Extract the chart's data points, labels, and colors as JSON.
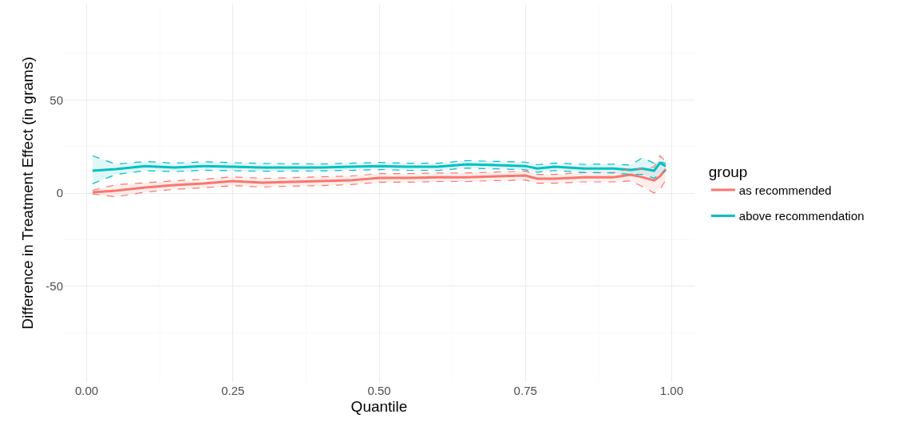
{
  "chart_data": {
    "type": "line",
    "xlabel": "Quantile",
    "ylabel": "Difference in Treatment Effect (in grams)",
    "legend_title": "group",
    "x": [
      0.01,
      0.05,
      0.1,
      0.15,
      0.2,
      0.25,
      0.3,
      0.35,
      0.4,
      0.45,
      0.5,
      0.55,
      0.6,
      0.65,
      0.7,
      0.75,
      0.77,
      0.8,
      0.85,
      0.9,
      0.93,
      0.95,
      0.97,
      0.98,
      0.99
    ],
    "series": [
      {
        "name": "as recommended",
        "color": "#f8766d",
        "values": [
          0.4,
          1.3,
          3,
          4.3,
          5.1,
          6.4,
          5.6,
          6,
          6.4,
          6.8,
          8.1,
          8.1,
          8.5,
          8.5,
          9,
          9.4,
          7.7,
          7.7,
          8.5,
          8.5,
          9.8,
          8.5,
          6.8,
          9,
          12.8
        ],
        "lower": [
          -0.5,
          -2,
          0.5,
          2,
          2.8,
          4,
          3.3,
          3.7,
          4,
          4.5,
          5.8,
          5.8,
          6.2,
          6.2,
          6.7,
          7,
          5.3,
          5.3,
          6,
          6,
          6.5,
          3.5,
          0,
          2,
          7
        ],
        "upper": [
          1.5,
          4.5,
          5.5,
          6.6,
          7.4,
          8.7,
          7.9,
          8.3,
          8.7,
          9.1,
          10.4,
          10.4,
          10.8,
          10.8,
          11.3,
          11.7,
          10,
          10,
          11,
          11,
          13,
          13,
          14,
          20,
          17
        ]
      },
      {
        "name": "above recommendation",
        "color": "#00bfc4",
        "values": [
          12,
          12.8,
          14.5,
          13.7,
          14.5,
          14.1,
          13.7,
          13.7,
          13.7,
          14.1,
          14.5,
          14.1,
          14.1,
          15.4,
          15,
          14.5,
          13.2,
          14.1,
          13.2,
          13.2,
          12.4,
          13.2,
          12,
          16.2,
          14.5
        ],
        "lower": [
          5,
          10,
          12,
          11.5,
          12.3,
          12,
          11.7,
          11.8,
          11.9,
          12.2,
          12.6,
          12.2,
          12.2,
          13.4,
          13,
          12.5,
          11.2,
          12.1,
          11,
          10.8,
          10,
          10,
          8,
          10,
          12
        ],
        "upper": [
          20,
          15.5,
          17,
          16,
          16.8,
          16.3,
          15.9,
          15.7,
          15.6,
          16,
          16.4,
          16,
          16,
          17.4,
          17,
          16.6,
          15.2,
          16.1,
          15.4,
          15.5,
          15,
          19,
          16,
          17,
          16
        ]
      },
      {
        "color": "#f8766d",
        "line_style": "dashed",
        "values": [
          -0.5,
          -2,
          0.5,
          2,
          2.8,
          4,
          3.3,
          3.7,
          4,
          4.5,
          5.8,
          5.8,
          6.2,
          6.2,
          6.7,
          7,
          5.3,
          5.3,
          6,
          6,
          6.5,
          3.5,
          0,
          2,
          7
        ]
      },
      {
        "color": "#f8766d",
        "line_style": "dashed",
        "values": [
          1.5,
          4.5,
          5.5,
          6.6,
          7.4,
          8.7,
          7.9,
          8.3,
          8.7,
          9.1,
          10.4,
          10.4,
          10.8,
          10.8,
          11.3,
          11.7,
          10,
          10,
          11,
          11,
          13,
          13,
          14,
          20,
          17
        ]
      },
      {
        "color": "#00bfc4",
        "line_style": "dashed",
        "values": [
          5,
          10,
          12,
          11.5,
          12.3,
          12,
          11.7,
          11.8,
          11.9,
          12.2,
          12.6,
          12.2,
          12.2,
          13.4,
          13,
          12.5,
          11.2,
          12.1,
          11,
          10.8,
          10,
          10,
          8,
          10,
          12
        ]
      },
      {
        "color": "#00bfc4",
        "line_style": "dashed",
        "values": [
          20,
          15.5,
          17,
          16,
          16.8,
          16.3,
          15.9,
          15.7,
          15.6,
          16,
          16.4,
          16,
          16,
          17.4,
          17,
          16.6,
          15.2,
          16.1,
          15.4,
          15.5,
          15,
          19,
          16,
          17,
          16
        ]
      }
    ],
    "xlim": [
      -0.039,
      1.039
    ],
    "ylim": [
      -101.5,
      101.5
    ],
    "xticks": [
      {
        "value": 0,
        "label": "0.00"
      },
      {
        "value": 0.25,
        "label": "0.25"
      },
      {
        "value": 0.5,
        "label": "0.50"
      },
      {
        "value": 0.75,
        "label": "0.75"
      },
      {
        "value": 1,
        "label": "1.00"
      }
    ],
    "yticks": [
      -50,
      0,
      50
    ],
    "grid": true,
    "legend": "right",
    "line_style": "solid"
  }
}
